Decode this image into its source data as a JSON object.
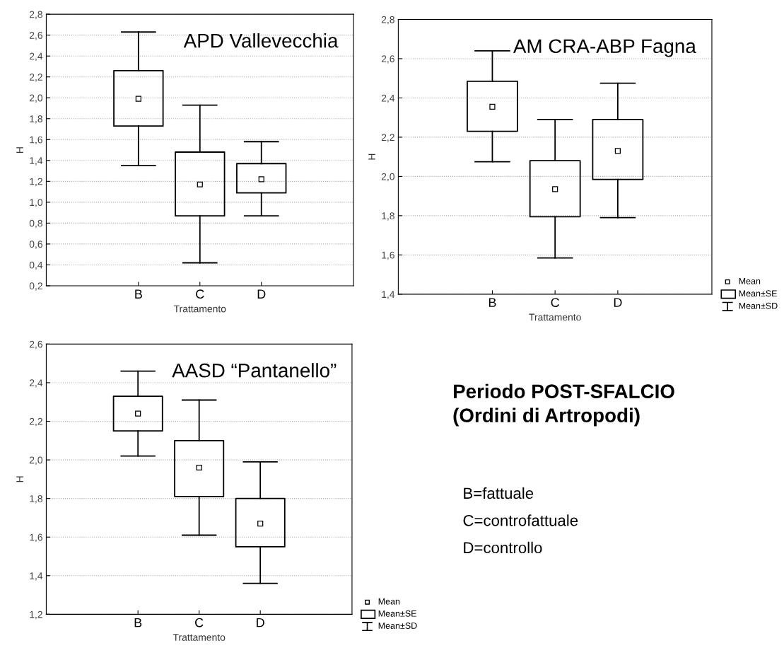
{
  "chart_data": [
    {
      "type": "box",
      "title": "APD Vallevecchia",
      "xlabel": "Trattamento",
      "ylabel": "H",
      "categories": [
        "B",
        "C",
        "D"
      ],
      "ylim": [
        0.2,
        2.8
      ],
      "yticks": [
        {
          "value": 0.2,
          "label": "0,2"
        },
        {
          "value": 0.4,
          "label": "0,4"
        },
        {
          "value": 0.6,
          "label": "0,6"
        },
        {
          "value": 0.8,
          "label": "0,8"
        },
        {
          "value": 1.0,
          "label": "1,0"
        },
        {
          "value": 1.2,
          "label": "1,2"
        },
        {
          "value": 1.4,
          "label": "1,4"
        },
        {
          "value": 1.6,
          "label": "1,6"
        },
        {
          "value": 1.8,
          "label": "1,8"
        },
        {
          "value": 2.0,
          "label": "2,0"
        },
        {
          "value": 2.2,
          "label": "2,2"
        },
        {
          "value": 2.4,
          "label": "2,4"
        },
        {
          "value": 2.6,
          "label": "2,6"
        },
        {
          "value": 2.8,
          "label": "2,8"
        }
      ],
      "grid": "y",
      "marker": "square",
      "boxes": [
        {
          "low": 1.35,
          "q1": 1.73,
          "median": 1.99,
          "q3": 2.26,
          "high": 2.63
        },
        {
          "low": 0.42,
          "q1": 0.87,
          "median": 1.17,
          "q3": 1.48,
          "high": 1.93
        },
        {
          "low": 0.87,
          "q1": 1.09,
          "median": 1.22,
          "q3": 1.37,
          "high": 1.58
        }
      ]
    },
    {
      "type": "box",
      "title": "AM CRA-ABP Fagna",
      "xlabel": "Trattamento",
      "ylabel": "H",
      "categories": [
        "B",
        "C",
        "D"
      ],
      "ylim": [
        1.4,
        2.8
      ],
      "yticks": [
        {
          "value": 1.4,
          "label": "1,4"
        },
        {
          "value": 1.6,
          "label": "1,6"
        },
        {
          "value": 1.8,
          "label": "1,8"
        },
        {
          "value": 2.0,
          "label": "2,0"
        },
        {
          "value": 2.2,
          "label": "2,2"
        },
        {
          "value": 2.4,
          "label": "2,4"
        },
        {
          "value": 2.6,
          "label": "2,6"
        },
        {
          "value": 2.8,
          "label": "2,8"
        }
      ],
      "grid": "y",
      "marker": "square",
      "annotations": [
        "Mean",
        "Mean±SE",
        "Mean±SD"
      ],
      "boxes": [
        {
          "low": 2.075,
          "q1": 2.23,
          "median": 2.355,
          "q3": 2.485,
          "high": 2.64
        },
        {
          "low": 1.585,
          "q1": 1.795,
          "median": 1.935,
          "q3": 2.08,
          "high": 2.29
        },
        {
          "low": 1.79,
          "q1": 1.985,
          "median": 2.13,
          "q3": 2.29,
          "high": 2.475
        }
      ]
    },
    {
      "type": "box",
      "title": "AASD “Pantanello”",
      "xlabel": "Trattamento",
      "ylabel": "H",
      "categories": [
        "B",
        "C",
        "D"
      ],
      "ylim": [
        1.2,
        2.6
      ],
      "yticks": [
        {
          "value": 1.2,
          "label": "1,2"
        },
        {
          "value": 1.4,
          "label": "1,4"
        },
        {
          "value": 1.6,
          "label": "1,6"
        },
        {
          "value": 1.8,
          "label": "1,8"
        },
        {
          "value": 2.0,
          "label": "2,0"
        },
        {
          "value": 2.2,
          "label": "2,2"
        },
        {
          "value": 2.4,
          "label": "2,4"
        },
        {
          "value": 2.6,
          "label": "2,6"
        }
      ],
      "grid": "y",
      "marker": "square",
      "annotations": [
        "Mean",
        "Mean±SE",
        "Mean±SD"
      ],
      "boxes": [
        {
          "low": 2.02,
          "q1": 2.15,
          "median": 2.24,
          "q3": 2.33,
          "high": 2.46
        },
        {
          "low": 1.61,
          "q1": 1.81,
          "median": 1.96,
          "q3": 2.1,
          "high": 2.31
        },
        {
          "low": 1.36,
          "q1": 1.55,
          "median": 1.67,
          "q3": 1.8,
          "high": 1.99
        }
      ]
    },
    {
      "type": "other",
      "title": "Periodo POST-SFALCIO\n(Ordini di Artropodi)",
      "annotations": [
        "B=fattuale",
        "C=controfattuale",
        "D=controllo"
      ]
    }
  ]
}
